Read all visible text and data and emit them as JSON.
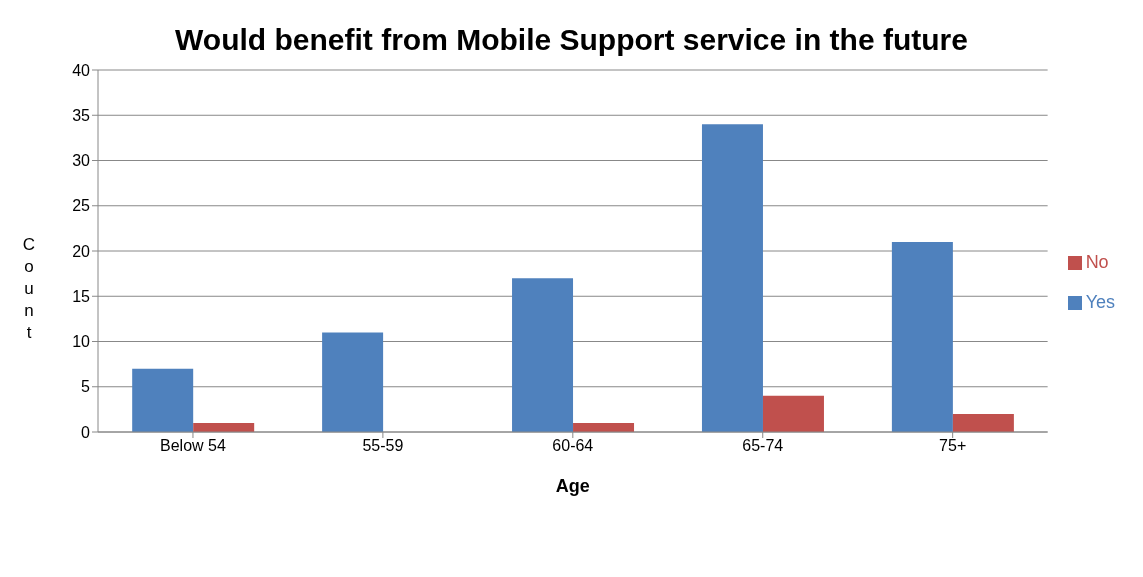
{
  "chart_data": {
    "type": "bar",
    "title": "Would benefit from Mobile Support service in the future",
    "xlabel": "Age",
    "ylabel": "Count",
    "categories": [
      "Below 54",
      "55-59",
      "60-64",
      "65-74",
      "75+"
    ],
    "series": [
      {
        "name": "Yes",
        "color": "#4f81bd",
        "values": [
          7,
          11,
          17,
          34,
          21
        ]
      },
      {
        "name": "No",
        "color": "#c0504d",
        "values": [
          1,
          0,
          1,
          4,
          2
        ]
      }
    ],
    "ylim": [
      0,
      40
    ],
    "yticks": [
      0,
      5,
      10,
      15,
      20,
      25,
      30,
      35,
      40
    ],
    "grid": "y",
    "legend": "right"
  }
}
